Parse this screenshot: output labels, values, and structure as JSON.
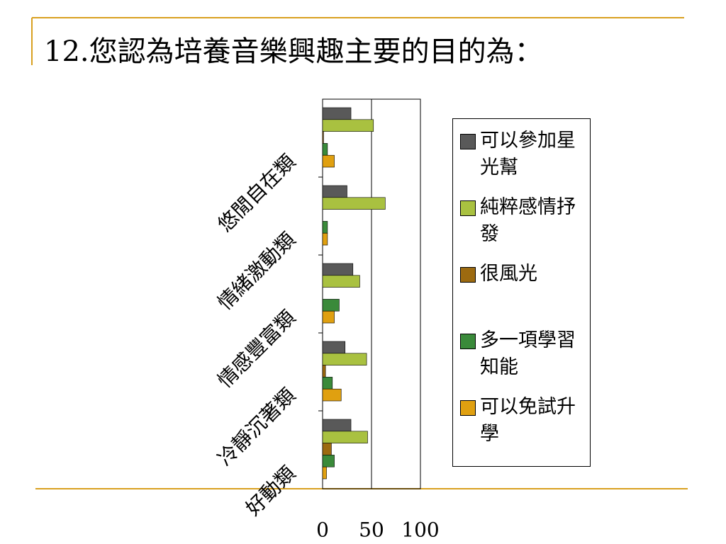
{
  "chart_data": {
    "type": "bar",
    "orientation": "horizontal",
    "title": "12.您認為培養音樂興趣主要的目的為：",
    "categories": [
      "悠閒自在類",
      "情緒激動類",
      "情感豐富類",
      "冷靜沉著類",
      "好動類"
    ],
    "series": [
      {
        "name": "可以參加星光幫",
        "color": "#595959",
        "values": [
          29,
          25,
          31,
          23,
          29
        ]
      },
      {
        "name": "純粹感情抒發",
        "color": "#a9c140",
        "values": [
          52,
          64,
          38,
          45,
          46
        ]
      },
      {
        "name": "很風光",
        "color": "#9c6a10",
        "values": [
          1,
          0,
          0,
          3,
          9
        ]
      },
      {
        "name": "多一項學習知能",
        "color": "#3a8a3a",
        "values": [
          5,
          5,
          17,
          10,
          12
        ]
      },
      {
        "name": "可以免試升學",
        "color": "#e0a010",
        "values": [
          12,
          5,
          12,
          19,
          4
        ]
      }
    ],
    "xlim": [
      0,
      100
    ],
    "xticks": [
      0,
      50,
      100
    ],
    "grid": true,
    "legend": "right"
  }
}
